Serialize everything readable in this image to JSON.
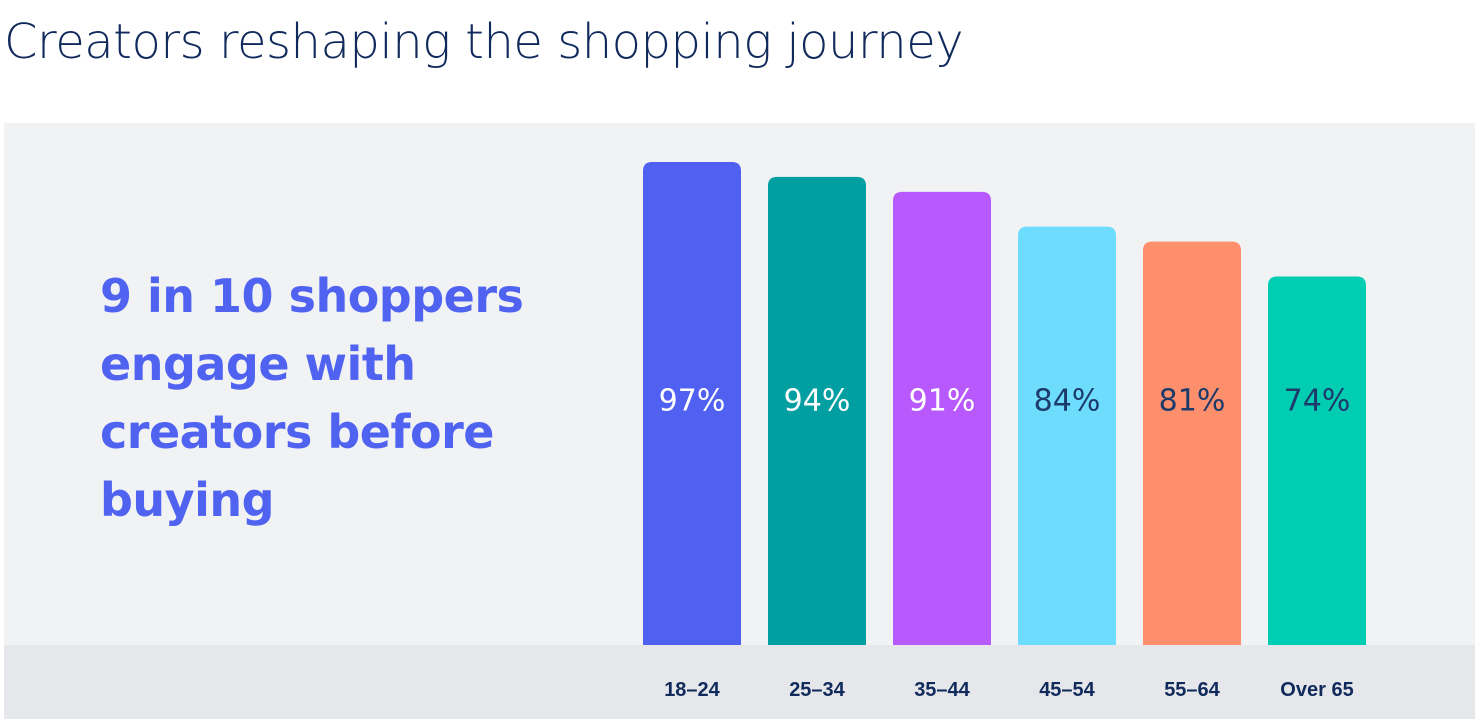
{
  "page": {
    "title": "Creators reshaping the shopping journey",
    "headline": "9 in 10 shoppers\nengage with\ncreators  before\nbuying"
  },
  "colors": {
    "title": "#102a5c",
    "headline": "#4f62f0",
    "panel": "#f1f2f4",
    "axis_band": "#e6e7ea"
  },
  "chart_data": {
    "type": "bar",
    "categories": [
      "18–24",
      "25–34",
      "35–44",
      "45–54",
      "55–64",
      "Over 65"
    ],
    "values": [
      97,
      94,
      91,
      84,
      81,
      74
    ],
    "value_labels": [
      "97%",
      "94%",
      "91%",
      "84%",
      "81%",
      "74%"
    ],
    "bar_colors": [
      "#5061f1",
      "#019ea2",
      "#b759fc",
      "#6ddcfd",
      "#fd8f6c",
      "#00cdb2"
    ],
    "label_colors": [
      "#ffffff",
      "#ffffff",
      "#ffffff",
      "#1d3a6b",
      "#1d3a6b",
      "#1d3a6b"
    ],
    "unit": "%",
    "grid": false,
    "legend": "none"
  }
}
